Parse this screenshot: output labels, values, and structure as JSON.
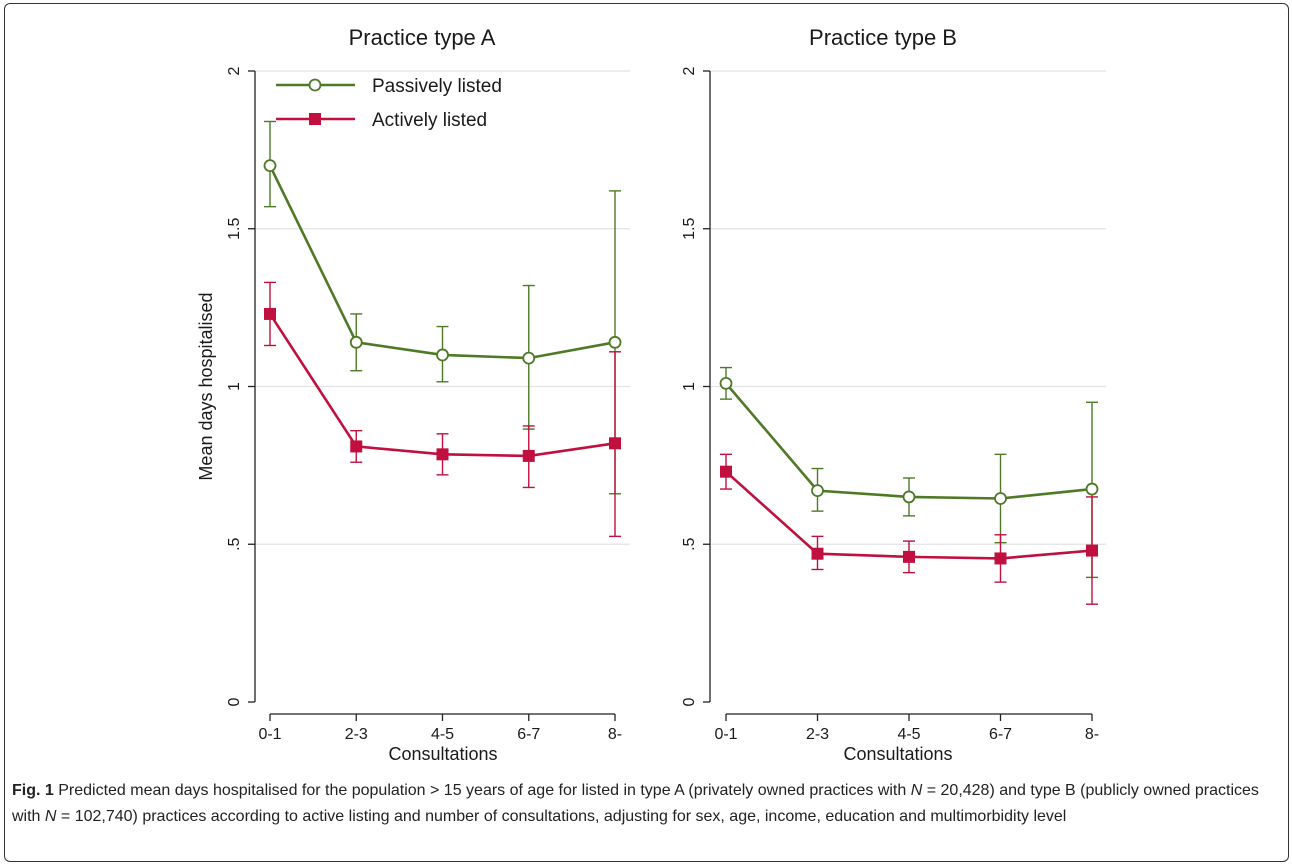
{
  "chart_data": [
    {
      "type": "line",
      "title": "Practice type A",
      "xlabel": "Consultations",
      "ylabel": "Mean days hospitalised",
      "categories": [
        "0-1",
        "2-3",
        "4-5",
        "6-7",
        "8-"
      ],
      "ylim": [
        0,
        2
      ],
      "yticks": [
        {
          "value": 0,
          "label": "0"
        },
        {
          "value": 0.5,
          "label": ".5"
        },
        {
          "value": 1,
          "label": "1"
        },
        {
          "value": 1.5,
          "label": "1.5"
        },
        {
          "value": 2,
          "label": "2"
        }
      ],
      "grid": true,
      "legend": "top-left",
      "series": [
        {
          "name": "Passively listed",
          "color": "#4e7a27",
          "marker": "hollow-circle",
          "values": [
            1.7,
            1.14,
            1.1,
            1.09,
            1.14
          ],
          "lower": [
            1.57,
            1.05,
            1.015,
            0.865,
            0.66
          ],
          "upper": [
            1.84,
            1.23,
            1.19,
            1.32,
            1.62
          ]
        },
        {
          "name": "Actively listed",
          "color": "#c0103f",
          "marker": "filled-square",
          "values": [
            1.23,
            0.81,
            0.785,
            0.78,
            0.82
          ],
          "lower": [
            1.13,
            0.76,
            0.72,
            0.68,
            0.525
          ],
          "upper": [
            1.33,
            0.86,
            0.85,
            0.875,
            1.11
          ]
        }
      ]
    },
    {
      "type": "line",
      "title": "Practice type B",
      "xlabel": "Consultations",
      "ylabel": "",
      "categories": [
        "0-1",
        "2-3",
        "4-5",
        "6-7",
        "8-"
      ],
      "ylim": [
        0,
        2
      ],
      "yticks": [
        {
          "value": 0,
          "label": "0"
        },
        {
          "value": 0.5,
          "label": ".5"
        },
        {
          "value": 1,
          "label": "1"
        },
        {
          "value": 1.5,
          "label": "1.5"
        },
        {
          "value": 2,
          "label": "2"
        }
      ],
      "grid": true,
      "series": [
        {
          "name": "Passively listed",
          "color": "#4e7a27",
          "marker": "hollow-circle",
          "values": [
            1.01,
            0.67,
            0.65,
            0.645,
            0.675
          ],
          "lower": [
            0.96,
            0.605,
            0.59,
            0.505,
            0.395
          ],
          "upper": [
            1.06,
            0.74,
            0.71,
            0.785,
            0.95
          ]
        },
        {
          "name": "Actively listed",
          "color": "#c0103f",
          "marker": "filled-square",
          "values": [
            0.73,
            0.47,
            0.46,
            0.455,
            0.48
          ],
          "lower": [
            0.675,
            0.42,
            0.41,
            0.38,
            0.31
          ],
          "upper": [
            0.785,
            0.525,
            0.51,
            0.53,
            0.65
          ]
        }
      ]
    }
  ],
  "legend": {
    "items": [
      {
        "label": "Passively listed",
        "color": "#4e7a27",
        "marker": "hollow-circle"
      },
      {
        "label": "Actively listed",
        "color": "#c0103f",
        "marker": "filled-square"
      }
    ]
  },
  "caption": {
    "fig_label": "Fig. 1",
    "part1": " Predicted mean days hospitalised for the population > 15 years of age for listed in type A (privately owned practices with ",
    "n_symbol_1": "N",
    "part2": " = 20,428) and type B (publicly owned practices with ",
    "n_symbol_2": "N",
    "part3": " = 102,740) practices according to active listing and number of consultations, adjusting for sex, age, income, education and multimorbidity level"
  }
}
